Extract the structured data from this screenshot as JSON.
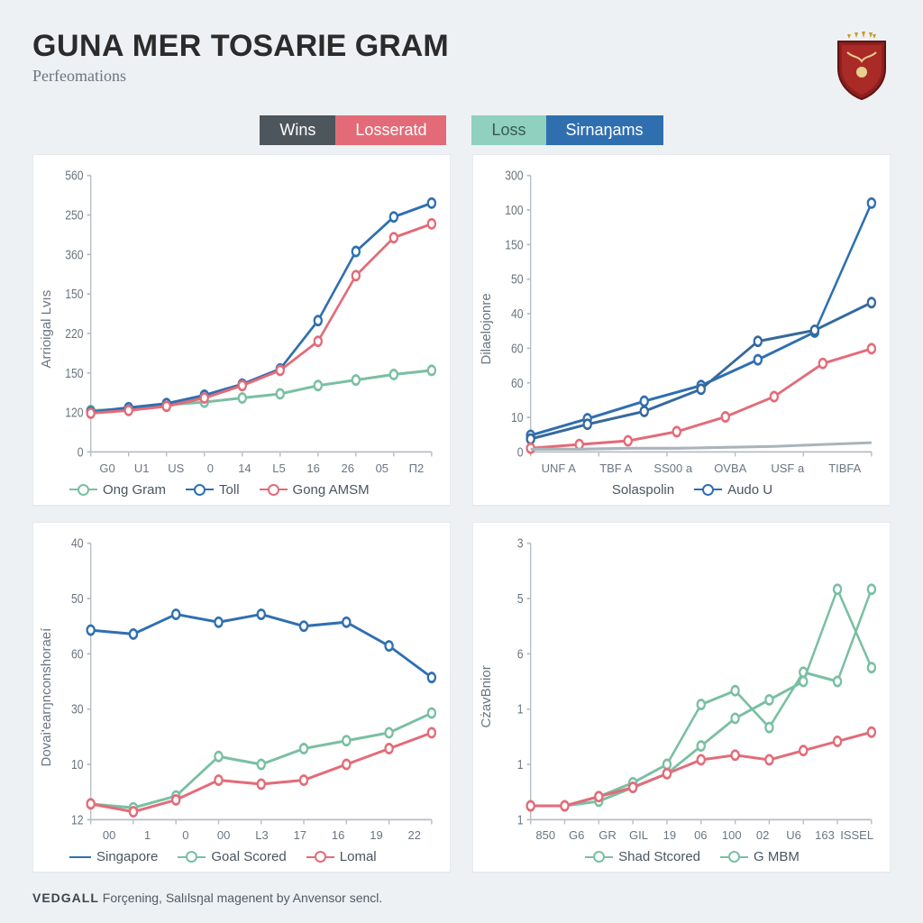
{
  "header": {
    "title_a": "GUNA MER",
    "title_b": "TOSARIE GRAM",
    "subtitle": "Perfeomations"
  },
  "palette": {
    "bg": "#edf1f4",
    "card": "#ffffff",
    "blue": "#2f6fb0",
    "red": "#e36b78",
    "green": "#7abfa3",
    "grey": "#a9b4bc",
    "axis": "#b8bec4",
    "grid": "#e4e8ec",
    "muted": "#6b7580",
    "dark": "#4e565d"
  },
  "top_legend": {
    "left": [
      {
        "label": "Wins",
        "bg": "#4e565d"
      },
      {
        "label": "Losseratd",
        "bg": "#e36b78"
      }
    ],
    "right": [
      {
        "label": "Loss",
        "bg": "#8fd0be"
      },
      {
        "label": "Sirnaŋams",
        "bg": "#2f6fb0"
      }
    ]
  },
  "charts": {
    "tl": {
      "type": "line",
      "ylabel": "Arrioigal Lvıs",
      "xticks": [
        "G0",
        "U1",
        "US",
        "0",
        "14",
        "L5",
        "16",
        "26",
        "05",
        "П2"
      ],
      "yticks": [
        "0",
        "120",
        "150",
        "220",
        "150",
        "360",
        "250",
        "560"
      ],
      "ylim": [
        0,
        400
      ],
      "series": [
        {
          "name": "ong-gram",
          "color": "#7abfa3",
          "marker": true,
          "values": [
            60,
            62,
            68,
            72,
            78,
            84,
            96,
            104,
            112,
            118
          ]
        },
        {
          "name": "toll",
          "color": "#2f6fb0",
          "marker": true,
          "values": [
            58,
            64,
            70,
            82,
            98,
            120,
            190,
            290,
            340,
            360
          ]
        },
        {
          "name": "gong-amsm",
          "color": "#e36b78",
          "marker": true,
          "values": [
            56,
            60,
            66,
            78,
            96,
            118,
            160,
            255,
            310,
            330
          ]
        }
      ],
      "legend": [
        {
          "label": "Ong Gram",
          "color": "#7abfa3",
          "marker": true
        },
        {
          "label": "Toll",
          "color": "#2f6fb0",
          "marker": true
        },
        {
          "label": "Gong AMSM",
          "color": "#e36b78",
          "marker": true
        }
      ]
    },
    "tr": {
      "type": "line",
      "ylabel": "Dilaelojonre",
      "xticks": [
        "UNF A",
        "TBF A",
        "SS00 a",
        "OVBA",
        "USF a",
        "TIBFA"
      ],
      "yticks": [
        "0",
        "10",
        "60",
        "60",
        "40",
        "50",
        "150",
        "100",
        "300"
      ],
      "ylim": [
        0,
        300
      ],
      "series": [
        {
          "name": "main-blue",
          "color": "#2f6fb0",
          "marker": true,
          "values": [
            18,
            36,
            55,
            72,
            100,
            130,
            270
          ]
        },
        {
          "name": "secondary-blue",
          "color": "#35699c",
          "marker": true,
          "values": [
            14,
            30,
            44,
            68,
            120,
            132,
            162
          ]
        },
        {
          "name": "red",
          "color": "#e36b78",
          "marker": true,
          "values": [
            4,
            8,
            12,
            22,
            38,
            60,
            96,
            112
          ]
        },
        {
          "name": "flat-grey",
          "color": "#a9b4bc",
          "marker": false,
          "values": [
            3,
            3,
            4,
            4,
            5,
            6,
            8,
            10
          ]
        }
      ],
      "legend": [
        {
          "label": "Solaspolin",
          "color": "#333333",
          "marker": false,
          "plain": true
        },
        {
          "label": "Audo U",
          "color": "#2f6fb0",
          "marker": true
        }
      ],
      "legend_align": "center"
    },
    "bl": {
      "type": "line",
      "ylabel": "Dovai'earŋnconshoraeí",
      "xticks": [
        "00",
        "1",
        "0",
        "00",
        "L3",
        "17",
        "16",
        "19",
        "22"
      ],
      "yticks": [
        "12",
        "10",
        "30",
        "60",
        "50",
        "40"
      ],
      "ylim": [
        0,
        70
      ],
      "series": [
        {
          "name": "singapore",
          "color": "#2f6fb0",
          "marker": true,
          "values": [
            48,
            47,
            52,
            50,
            52,
            49,
            50,
            44,
            36
          ]
        },
        {
          "name": "goal-scored",
          "color": "#7abfa3",
          "marker": true,
          "values": [
            4,
            3,
            6,
            16,
            14,
            18,
            20,
            22,
            27
          ]
        },
        {
          "name": "lomal",
          "color": "#e36b78",
          "marker": true,
          "values": [
            4,
            2,
            5,
            10,
            9,
            10,
            14,
            18,
            22
          ]
        }
      ],
      "legend": [
        {
          "label": "Singapore",
          "color": "#2f6fb0",
          "marker": false,
          "lineonly": true
        },
        {
          "label": "Goal Scored",
          "color": "#7abfa3",
          "marker": true
        },
        {
          "label": "Lomal",
          "color": "#e36b78",
          "marker": true
        }
      ]
    },
    "br": {
      "type": "line",
      "ylabel": "CżavBnior",
      "xticks": [
        "850",
        "G6",
        "GR",
        "GIL",
        "19",
        "06",
        "100",
        "02",
        "U6",
        "163",
        "ISSEL"
      ],
      "yticks": [
        "1",
        "1",
        "1",
        "6",
        "5",
        "3"
      ],
      "ylim": [
        0,
        6
      ],
      "heavy_axis": true,
      "series": [
        {
          "name": "shad-stcored",
          "color": "#7abfa3",
          "marker": true,
          "values": [
            0.3,
            0.3,
            0.5,
            0.8,
            1.2,
            2.5,
            2.8,
            2.0,
            3.2,
            3.0,
            5.0
          ]
        },
        {
          "name": "g-mbm",
          "color": "#7abfa3",
          "marker": true,
          "values": [
            0.3,
            0.3,
            0.4,
            0.7,
            1.0,
            1.6,
            2.2,
            2.6,
            3.0,
            5.0,
            3.3
          ]
        },
        {
          "name": "red",
          "color": "#e36b78",
          "marker": true,
          "values": [
            0.3,
            0.3,
            0.5,
            0.7,
            1.0,
            1.3,
            1.4,
            1.3,
            1.5,
            1.7,
            1.9
          ]
        }
      ],
      "legend": [
        {
          "label": "Shad Stcored",
          "color": "#7abfa3",
          "marker": true
        },
        {
          "label": "G MBM",
          "color": "#7abfa3",
          "marker": true
        }
      ],
      "legend_align": "center"
    }
  },
  "footer": {
    "brand": "VEDGALL",
    "text": " Forçening, Salılsŋal magenent by Anvensor sencl."
  }
}
